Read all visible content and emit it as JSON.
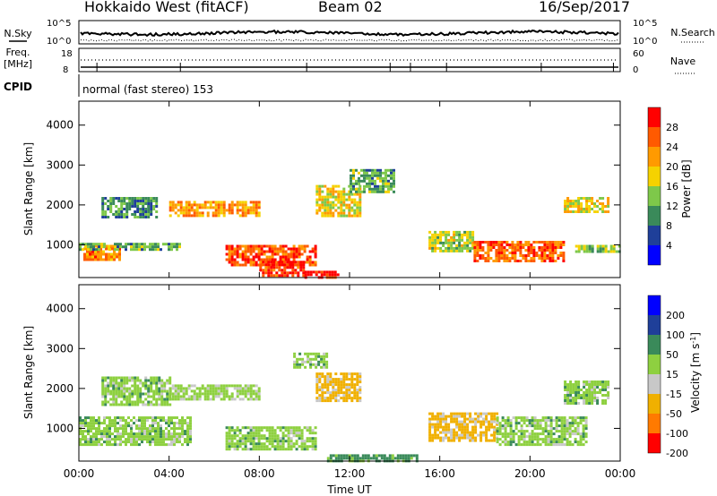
{
  "header": {
    "station": "Hokkaido West (fitACF)",
    "beam": "Beam 02",
    "date": "16/Sep/2017"
  },
  "noise_panel": {
    "left_label": "N.Sky",
    "right_label": "N.Search",
    "left_ticks": [
      "10^5",
      "10^0"
    ],
    "right_ticks": [
      "10^5",
      "10^0"
    ]
  },
  "freq_panel": {
    "left_label_line1": "Freq.",
    "left_label_line2": "[MHz]",
    "right_label": "Nave",
    "left_ticks": [
      "18",
      "8"
    ],
    "right_ticks": [
      "60",
      "0"
    ]
  },
  "cpid": {
    "label": "CPID",
    "mode": "normal (fast stereo) 153"
  },
  "colors": {
    "power": [
      "#0000ff",
      "#1f3f99",
      "#3a8a5a",
      "#7ec84a",
      "#f5d200",
      "#ff9a00",
      "#ff5a00",
      "#ff0000"
    ],
    "velocity": [
      "#ff0000",
      "#ff7a00",
      "#f0b000",
      "#c8c8c8",
      "#8ed040",
      "#3a8a5a",
      "#1f3f99",
      "#0000ff"
    ]
  },
  "chart_data": [
    {
      "type": "heatmap",
      "title": "",
      "xlabel": "",
      "ylabel": "Slant Range [km]",
      "x_ticks": [
        "00:00",
        "04:00",
        "08:00",
        "12:00",
        "16:00",
        "20:00",
        "00:00"
      ],
      "y_ticks": [
        1000,
        2000,
        3000,
        4000
      ],
      "xlim_hours": [
        0,
        24
      ],
      "ylim": [
        180,
        4600
      ],
      "colorbar": {
        "label": "Power [dB]",
        "ticks": [
          4,
          8,
          12,
          16,
          20,
          24,
          28
        ],
        "range": [
          0,
          32
        ]
      },
      "patches": [
        {
          "t": [
            0.2,
            1.8
          ],
          "r": [
            650,
            1000
          ],
          "db": 24
        },
        {
          "t": [
            0.0,
            4.5
          ],
          "r": [
            850,
            1050
          ],
          "db": 12
        },
        {
          "t": [
            1.0,
            3.5
          ],
          "r": [
            1700,
            2200
          ],
          "db": 10
        },
        {
          "t": [
            4.0,
            8.0
          ],
          "r": [
            1700,
            2100
          ],
          "db": 22
        },
        {
          "t": [
            6.5,
            10.5
          ],
          "r": [
            500,
            1000
          ],
          "db": 26
        },
        {
          "t": [
            8.0,
            10.0
          ],
          "r": [
            250,
            600
          ],
          "db": 28
        },
        {
          "t": [
            10.0,
            11.5
          ],
          "r": [
            200,
            350
          ],
          "db": 30
        },
        {
          "t": [
            10.5,
            12.5
          ],
          "r": [
            1700,
            2500
          ],
          "db": 18
        },
        {
          "t": [
            12.0,
            14.0
          ],
          "r": [
            2300,
            2900
          ],
          "db": 12
        },
        {
          "t": [
            15.5,
            17.5
          ],
          "r": [
            850,
            1350
          ],
          "db": 16
        },
        {
          "t": [
            17.5,
            21.5
          ],
          "r": [
            600,
            1100
          ],
          "db": 26
        },
        {
          "t": [
            21.5,
            23.5
          ],
          "r": [
            1800,
            2200
          ],
          "db": 18
        },
        {
          "t": [
            22.0,
            24.0
          ],
          "r": [
            800,
            1000
          ],
          "db": 14
        }
      ]
    },
    {
      "type": "heatmap",
      "title": "",
      "xlabel": "Time UT",
      "ylabel": "Slant Range [km]",
      "x_ticks": [
        "00:00",
        "04:00",
        "08:00",
        "12:00",
        "16:00",
        "20:00",
        "00:00"
      ],
      "y_ticks": [
        1000,
        2000,
        3000,
        4000
      ],
      "xlim_hours": [
        0,
        24
      ],
      "ylim": [
        180,
        4600
      ],
      "colorbar": {
        "label": "Velocity [m s^-1]",
        "ticks": [
          -200,
          -100,
          -50,
          -15,
          15,
          50,
          100,
          200
        ],
        "range": [
          -250,
          250
        ]
      },
      "patches": [
        {
          "t": [
            0.0,
            5.0
          ],
          "r": [
            600,
            1300
          ],
          "v": 0
        },
        {
          "t": [
            1.0,
            4.0
          ],
          "r": [
            1600,
            2300
          ],
          "v": 0
        },
        {
          "t": [
            4.0,
            8.0
          ],
          "r": [
            1700,
            2100
          ],
          "v": -5
        },
        {
          "t": [
            6.5,
            10.5
          ],
          "r": [
            450,
            1050
          ],
          "v": 0
        },
        {
          "t": [
            9.5,
            11.0
          ],
          "r": [
            2500,
            2900
          ],
          "v": 0
        },
        {
          "t": [
            10.5,
            12.5
          ],
          "r": [
            1700,
            2400
          ],
          "v": -60
        },
        {
          "t": [
            11.0,
            15.0
          ],
          "r": [
            200,
            350
          ],
          "v": 30
        },
        {
          "t": [
            15.5,
            18.5
          ],
          "r": [
            700,
            1400
          ],
          "v": -60
        },
        {
          "t": [
            18.5,
            22.5
          ],
          "r": [
            600,
            1300
          ],
          "v": 0
        },
        {
          "t": [
            21.5,
            23.5
          ],
          "r": [
            1600,
            2200
          ],
          "v": 0
        }
      ]
    }
  ]
}
